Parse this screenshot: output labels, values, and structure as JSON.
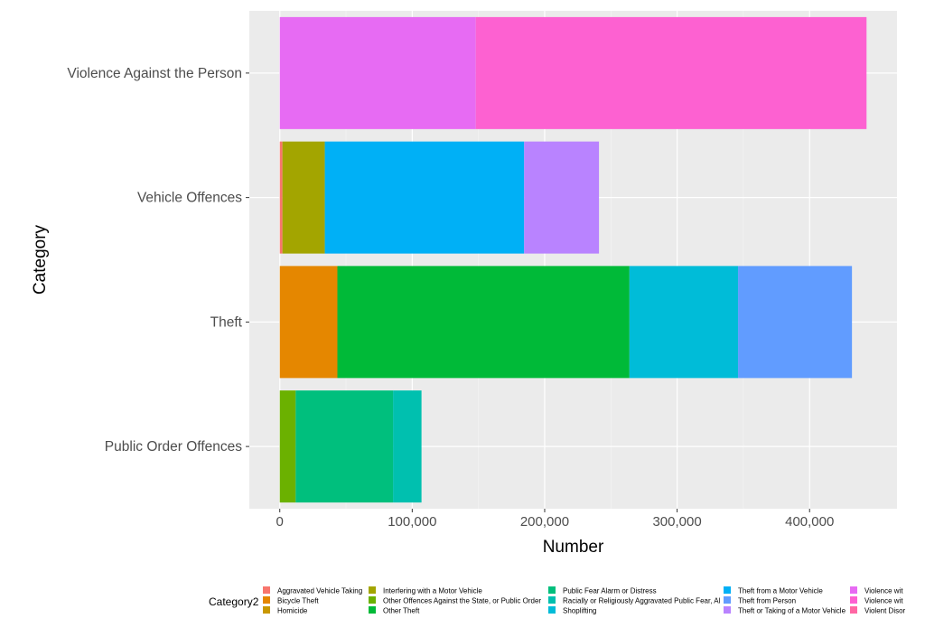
{
  "chart_data": {
    "type": "bar",
    "orientation": "horizontal",
    "stacked": true,
    "xlabel": "Number",
    "ylabel": "Category",
    "xlim": [
      -23000,
      466000
    ],
    "xticks": [
      0,
      100000,
      200000,
      300000,
      400000
    ],
    "xtick_labels": [
      "0",
      "100,000",
      "200,000",
      "300,000",
      "400,000"
    ],
    "categories": [
      "Public Order Offences",
      "Theft",
      "Vehicle Offences",
      "Violence Against the Person"
    ],
    "grid": true,
    "legend": {
      "title": "Category2",
      "placement": "bottom",
      "entries": [
        {
          "name": "Aggravated Vehicle Taking",
          "color": "#F8766D"
        },
        {
          "name": "Bicycle Theft",
          "color": "#E58700"
        },
        {
          "name": "Homicide",
          "color": "#C99800"
        },
        {
          "name": "Interfering with a Motor Vehicle",
          "color": "#A3A500"
        },
        {
          "name": "Other Offences Against the State, or Public Order",
          "color": "#6BB100"
        },
        {
          "name": "Other Theft",
          "color": "#00BA38"
        },
        {
          "name": "Public Fear Alarm or Distress",
          "color": "#00BF7D"
        },
        {
          "name": "Racially or Religiously Aggravated Public Fear, Al",
          "color": "#00C0AF"
        },
        {
          "name": "Shoplifting",
          "color": "#00BCD8"
        },
        {
          "name": "Theft from a Motor Vehicle",
          "color": "#00B0F6"
        },
        {
          "name": "Theft from Person",
          "color": "#619CFF"
        },
        {
          "name": "Theft or Taking of a Motor Vehicle",
          "color": "#B983FF"
        },
        {
          "name": "Violence wit",
          "color": "#E76BF3"
        },
        {
          "name": "Violence wit",
          "color": "#FD61D1"
        },
        {
          "name": "Violent Disor",
          "color": "#FF67A4"
        }
      ]
    },
    "series": [
      {
        "category": "Public Order Offences",
        "segments": [
          {
            "legend_index": 4,
            "value": 12000
          },
          {
            "legend_index": 6,
            "value": 73500
          },
          {
            "legend_index": 7,
            "value": 21500
          }
        ]
      },
      {
        "category": "Theft",
        "segments": [
          {
            "legend_index": 1,
            "value": 43500
          },
          {
            "legend_index": 5,
            "value": 220500
          },
          {
            "legend_index": 8,
            "value": 82000
          },
          {
            "legend_index": 10,
            "value": 86000
          }
        ]
      },
      {
        "category": "Vehicle Offences",
        "segments": [
          {
            "legend_index": 0,
            "value": 2000
          },
          {
            "legend_index": 3,
            "value": 32000
          },
          {
            "legend_index": 9,
            "value": 150500
          },
          {
            "legend_index": 11,
            "value": 56500
          }
        ]
      },
      {
        "category": "Violence Against the Person",
        "segments": [
          {
            "legend_index": 12,
            "value": 148000
          },
          {
            "legend_index": 13,
            "value": 295000
          }
        ]
      }
    ]
  }
}
